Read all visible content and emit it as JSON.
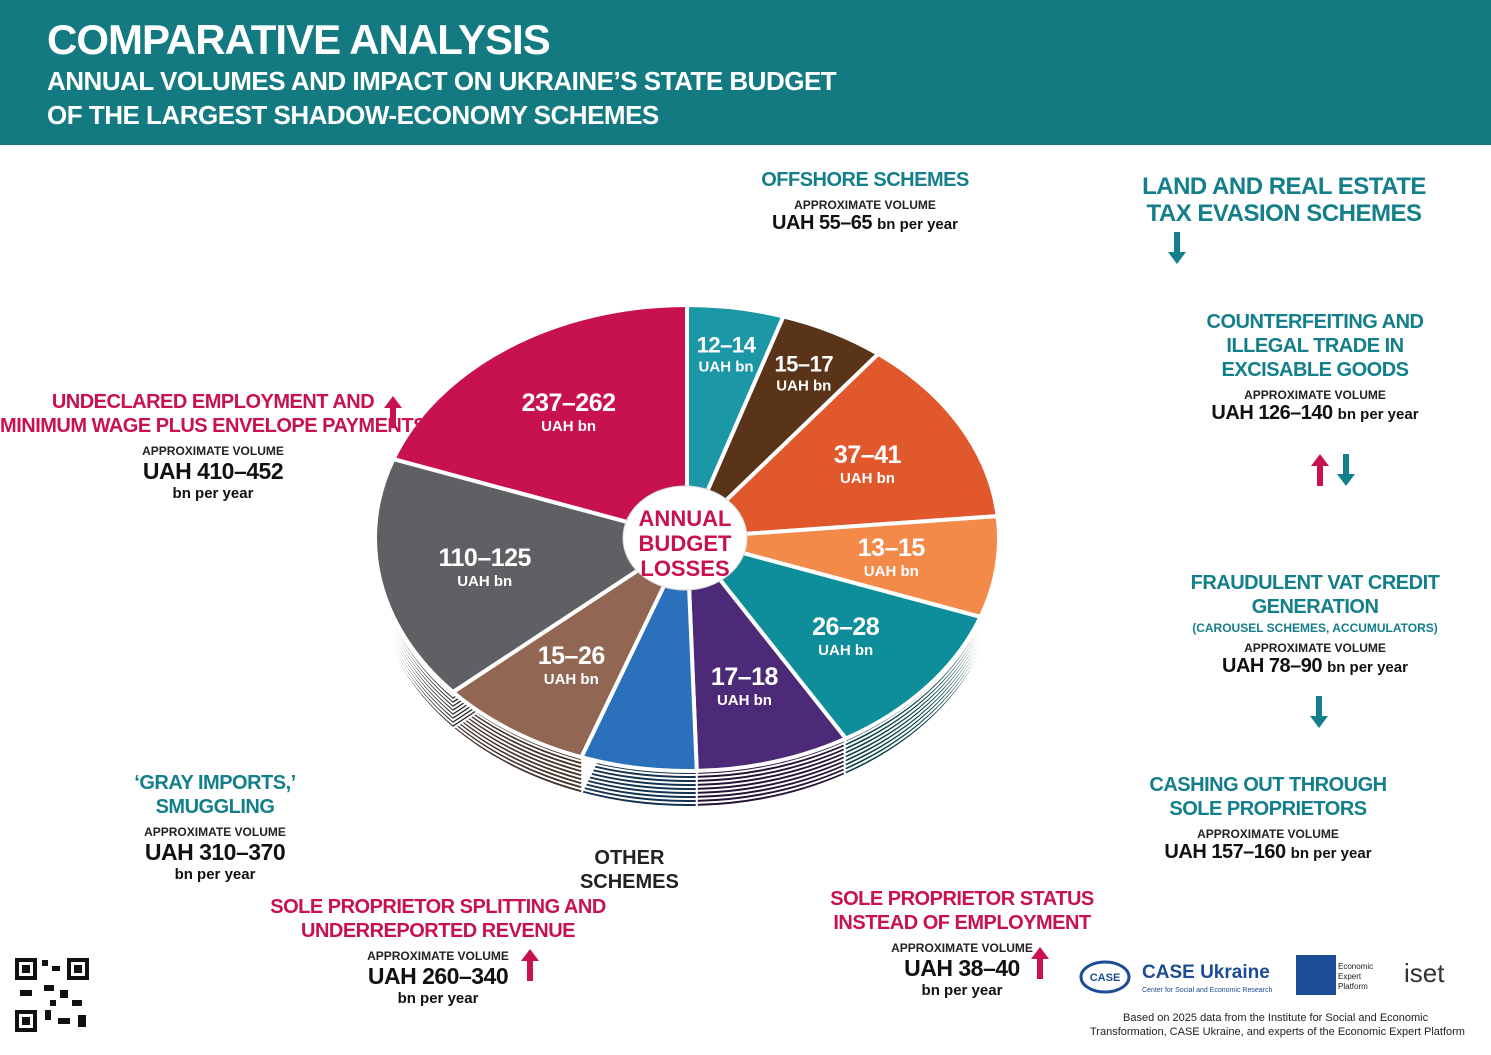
{
  "header": {
    "title": "COMPARATIVE ANALYSIS",
    "subtitle_lines": [
      "ANNUAL VOLUMES AND IMPACT ON UKRAINE’S STATE BUDGET",
      "OF THE LARGEST SHADOW-ECONOMY SCHEMES"
    ]
  },
  "chart_data": {
    "type": "pie",
    "center_label_lines": [
      "ANNUAL",
      "BUDGET",
      "LOSSES"
    ],
    "unit": "UAH bn",
    "categories": [
      null,
      null,
      null,
      null,
      null,
      null,
      "OTHER SCHEMES",
      null,
      null,
      null
    ],
    "range_labels": [
      "12–14",
      "15–17",
      "37–41",
      "13–15",
      "26–28",
      "17–18",
      null,
      "15–26",
      "110–125",
      "237–262"
    ],
    "values": [
      5,
      5.5,
      13,
      7,
      11,
      8,
      6,
      8,
      17,
      19.5
    ],
    "colors": [
      "#1b97a5",
      "#5a3418",
      "#e0582c",
      "#f38a4a",
      "#0e8e9b",
      "#4d2a78",
      "#2a70bb",
      "#916753",
      "#5f6063",
      "#c8124f"
    ]
  },
  "annotations": [
    {
      "title_lines": [
        "UNDECLARED EMPLOYMENT AND",
        "MINIMUM WAGE PLUS ENVELOPE PAYMENTS"
      ],
      "volume_caption": "APPROXIMATE VOLUME",
      "volume": "UAH 410–452",
      "unit": "bn per year"
    },
    {
      "title_lines": [
        "‘GRAY IMPORTS,’",
        "SMUGGLING"
      ],
      "volume_caption": "APPROXIMATE VOLUME",
      "volume": "UAH 310–370",
      "unit": "bn per year"
    },
    {
      "title_lines": [
        "SOLE PROPRIETOR SPLITTING AND",
        "UNDERREPORTED REVENUE"
      ],
      "volume_caption": "APPROXIMATE VOLUME",
      "volume": "UAH 260–340",
      "unit": "bn per year"
    },
    {
      "title_lines": [
        "SOLE PROPRIETOR STATUS",
        "INSTEAD OF EMPLOYMENT"
      ],
      "volume_caption": "APPROXIMATE VOLUME",
      "volume": "UAH 38–40",
      "unit": "bn per year"
    },
    {
      "title_lines": [
        "OFFSHORE SCHEMES"
      ],
      "volume_caption": "APPROXIMATE VOLUME",
      "volume": "UAH 55–65",
      "unit": "bn per year"
    },
    {
      "title_lines": [
        "LAND AND REAL ESTATE",
        "TAX EVASION SCHEMES"
      ]
    },
    {
      "title_lines": [
        "COUNTERFEITING AND",
        "ILLEGAL TRADE IN",
        "EXCISABLE GOODS"
      ],
      "volume_caption": "APPROXIMATE VOLUME",
      "volume": "UAH 126–140",
      "unit": "bn per year"
    },
    {
      "title_lines": [
        "FRAUDULENT VAT CREDIT",
        "GENERATION"
      ],
      "note": "(CAROUSEL SCHEMES, ACCUMULATORS)",
      "volume_caption": "APPROXIMATE VOLUME",
      "volume": "UAH 78–90",
      "unit": "bn per year"
    },
    {
      "title_lines": [
        "CASHING OUT THROUGH",
        "SOLE PROPRIETORS"
      ],
      "volume_caption": "APPROXIMATE VOLUME",
      "volume": "UAH 157–160",
      "unit": "bn per year"
    }
  ],
  "footer": {
    "case_name": "CASE Ukraine",
    "case_logo": "CASE",
    "case_subtitle": "Center for Social and Economic Research",
    "eep_name": "Economic Expert Platform",
    "iset": "iset",
    "source_lines": [
      "Based on 2025 data from the Institute for Social and Economic",
      "Transformation, CASE Ukraine, and experts of the Economic Expert Platform"
    ]
  }
}
